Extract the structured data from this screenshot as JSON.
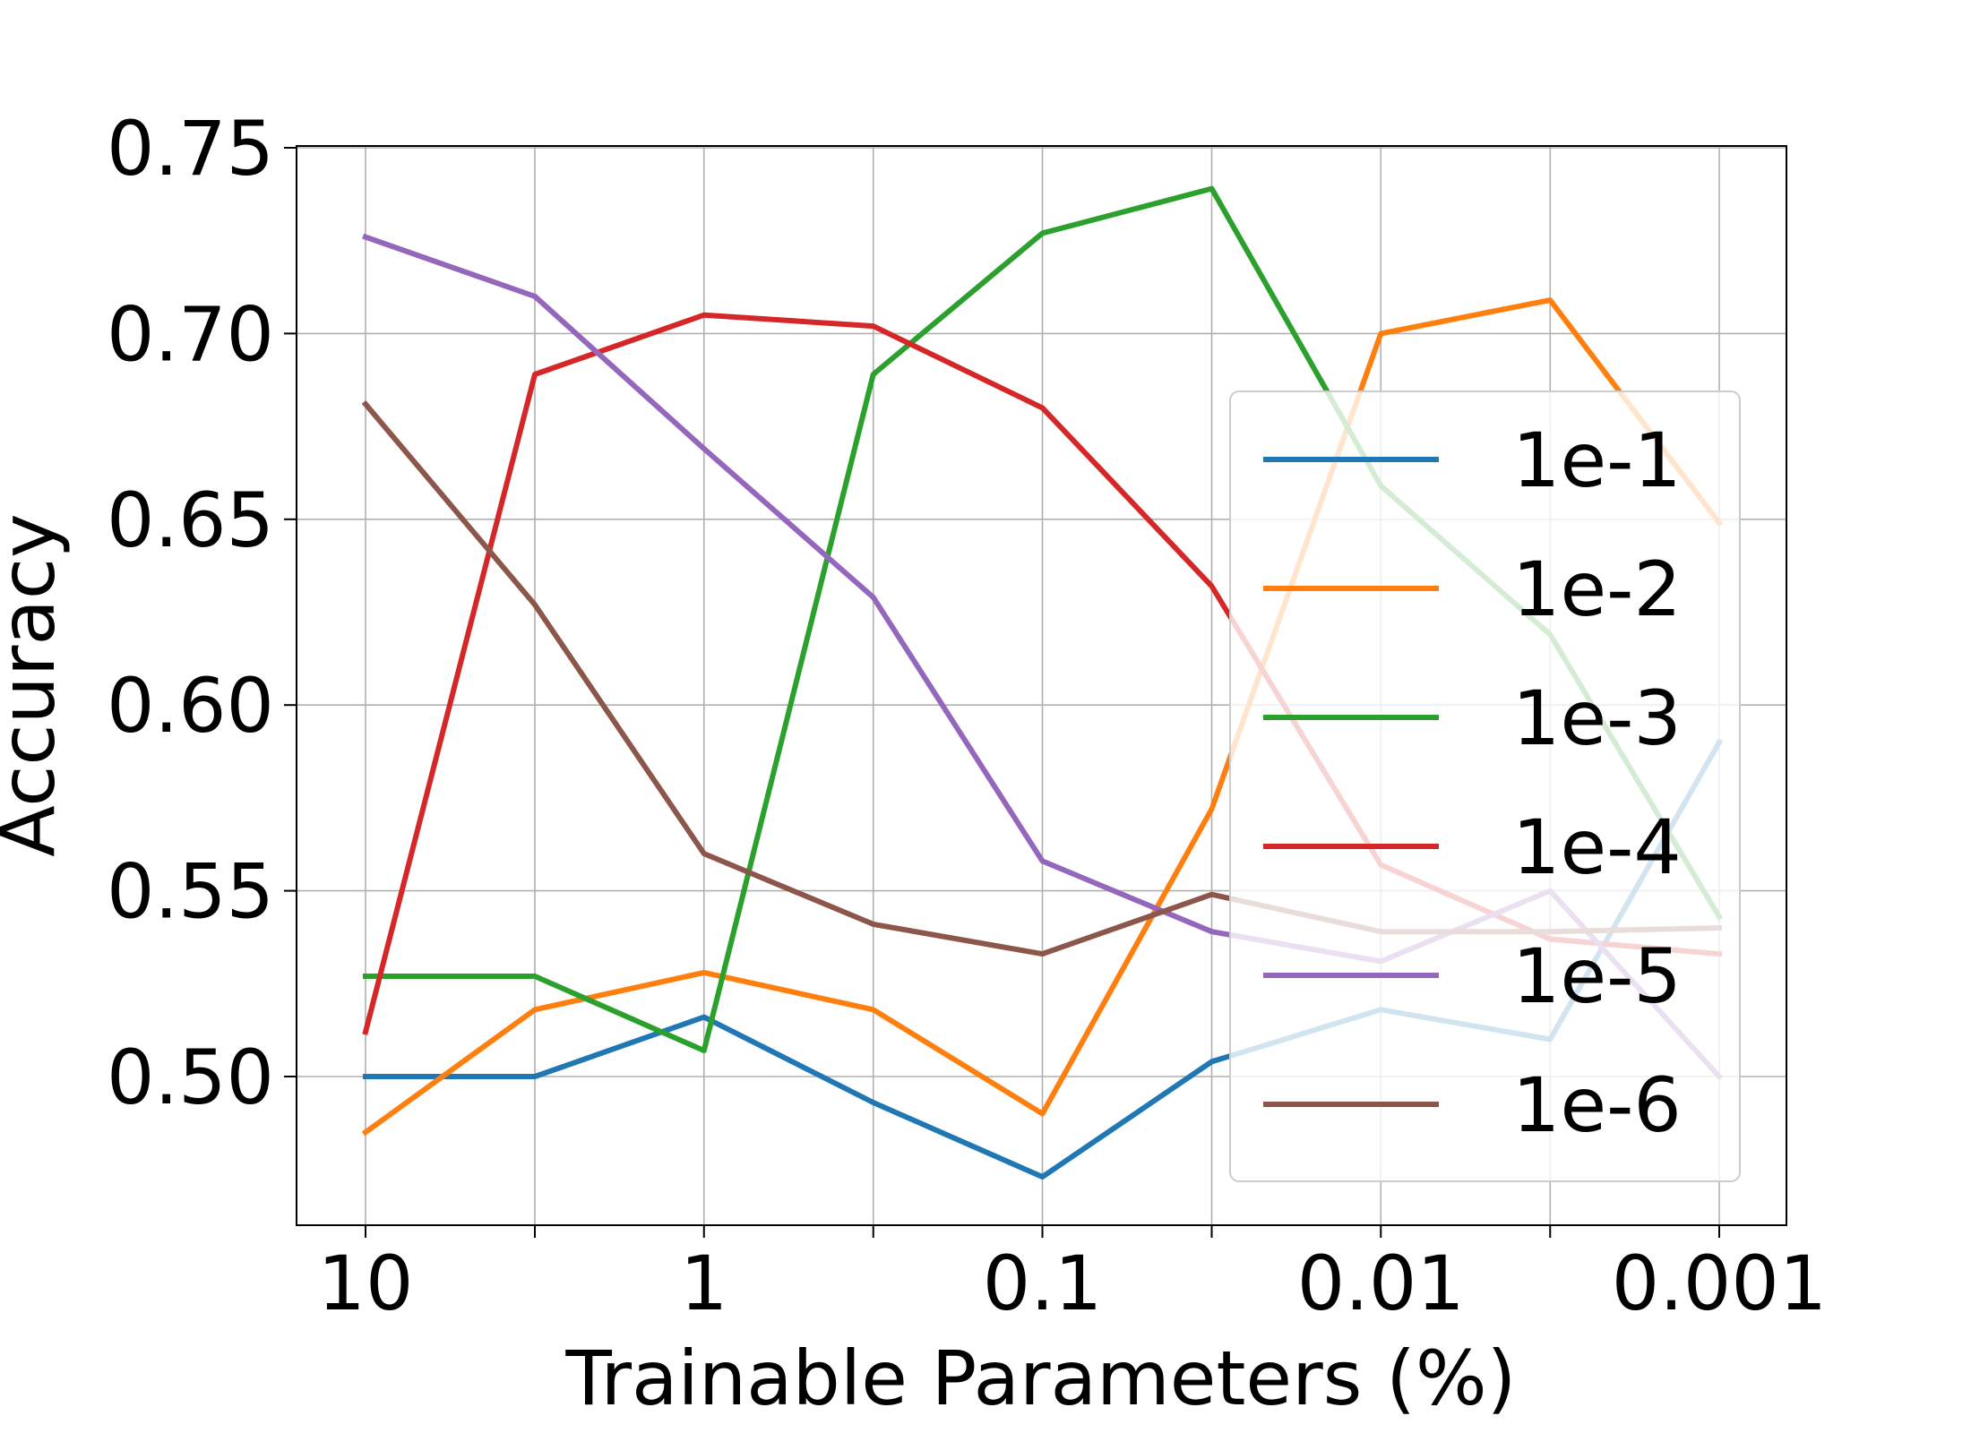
{
  "chart_data": {
    "type": "line",
    "xlabel": "Trainable Parameters (%)",
    "ylabel": "Accuracy",
    "x_tick_labels": [
      "10",
      "1",
      "0.1",
      "0.01",
      "0.001"
    ],
    "x_tick_values": [
      10,
      3.16,
      1,
      0.316,
      0.1,
      0.0316,
      0.01,
      0.00316,
      0.001
    ],
    "x_scale": "log",
    "x_reversed": true,
    "xlim": [
      10,
      0.001
    ],
    "y_tick_labels": [
      "0.50",
      "0.55",
      "0.60",
      "0.65",
      "0.70",
      "0.75"
    ],
    "y_tick_values": [
      0.5,
      0.55,
      0.6,
      0.65,
      0.7,
      0.75
    ],
    "ylim": [
      0.46,
      0.752
    ],
    "grid": true,
    "legend_position": "center-right",
    "series": [
      {
        "name": "1e-1",
        "color": "#1f77b4",
        "values": [
          0.5,
          0.5,
          0.516,
          0.493,
          0.473,
          0.504,
          0.518,
          0.51,
          0.59
        ]
      },
      {
        "name": "1e-2",
        "color": "#ff7f0e",
        "values": [
          0.485,
          0.518,
          0.528,
          0.518,
          0.49,
          0.572,
          0.7,
          0.709,
          0.649
        ]
      },
      {
        "name": "1e-3",
        "color": "#2ca02c",
        "values": [
          0.527,
          0.527,
          0.507,
          0.689,
          0.727,
          0.739,
          0.659,
          0.619,
          0.543
        ]
      },
      {
        "name": "1e-4",
        "color": "#d62728",
        "values": [
          0.512,
          0.689,
          0.705,
          0.702,
          0.68,
          0.632,
          0.557,
          0.537,
          0.533
        ]
      },
      {
        "name": "1e-5",
        "color": "#9467bd",
        "values": [
          0.726,
          0.71,
          0.669,
          0.629,
          0.558,
          0.539,
          0.531,
          0.55,
          0.5
        ]
      },
      {
        "name": "1e-6",
        "color": "#8c564b",
        "values": [
          0.681,
          0.627,
          0.56,
          0.541,
          0.533,
          0.549,
          0.539,
          0.539,
          0.54
        ]
      }
    ]
  }
}
